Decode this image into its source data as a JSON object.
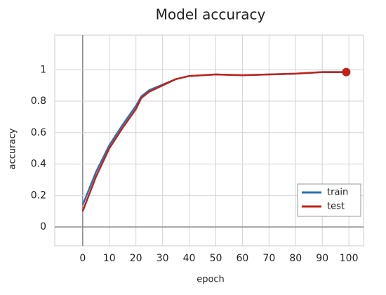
{
  "chart_data": {
    "type": "line",
    "title": "Model accuracy",
    "x_label": "epoch",
    "y_label": "accuracy",
    "x": [
      0,
      5,
      10,
      15,
      20,
      22,
      25,
      30,
      35,
      40,
      50,
      60,
      70,
      80,
      90,
      99
    ],
    "series": [
      {
        "name": "train",
        "color": "#2f6fb3",
        "values": [
          0.14,
          0.35,
          0.52,
          0.65,
          0.77,
          0.83,
          0.87,
          0.905,
          0.94,
          0.96,
          0.97,
          0.965,
          0.97,
          0.975,
          0.985,
          0.985
        ]
      },
      {
        "name": "test",
        "color": "#c0231a",
        "values": [
          0.1,
          0.32,
          0.5,
          0.63,
          0.75,
          0.82,
          0.86,
          0.9,
          0.94,
          0.96,
          0.97,
          0.965,
          0.97,
          0.975,
          0.985,
          0.985
        ]
      }
    ],
    "xlim": [
      -10.5,
      105.5
    ],
    "ylim": [
      -0.12,
      1.22
    ],
    "xticks": [
      0,
      10,
      20,
      30,
      40,
      50,
      60,
      70,
      80,
      90,
      100
    ],
    "yticks": [
      0,
      0.2,
      0.4,
      0.6,
      0.8,
      1
    ],
    "grid": true,
    "legend": "lower right"
  }
}
